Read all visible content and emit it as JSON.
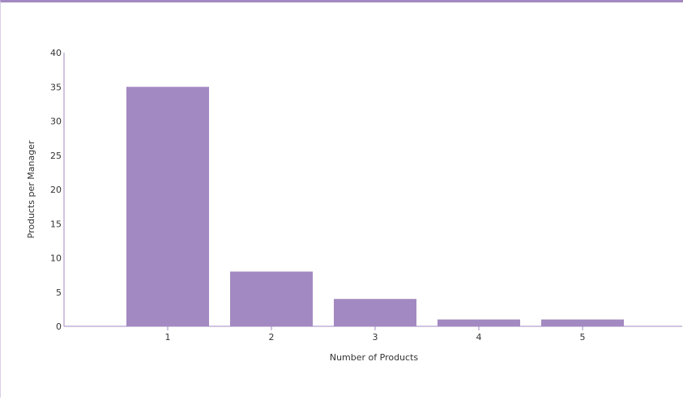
{
  "chart_data": {
    "type": "bar",
    "categories": [
      "1",
      "2",
      "3",
      "4",
      "5"
    ],
    "values": [
      35,
      8,
      4,
      1,
      1
    ],
    "title": "",
    "xlabel": "Number of Products",
    "ylabel": "Products per Manager",
    "ylim": [
      0,
      40
    ],
    "yticks": [
      "0",
      "5",
      "10",
      "15",
      "20",
      "25",
      "30",
      "35",
      "40"
    ],
    "grid": false,
    "legend": "none",
    "bar_color": "#a389c1",
    "axis_color": "#a389c1"
  }
}
